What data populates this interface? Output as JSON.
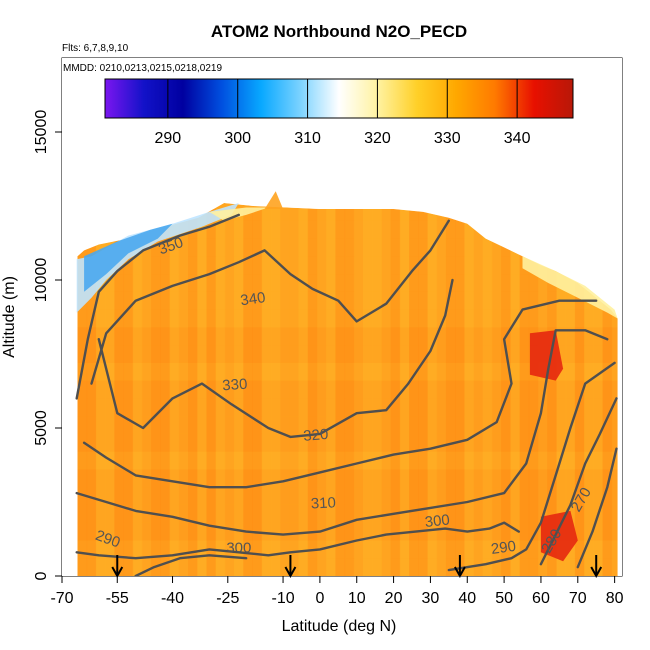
{
  "chart_data": {
    "type": "heatmap",
    "title": "ATOM2 Northbound N2O_PECD",
    "subtitle_flights": "Flts: 6,7,8,9,10",
    "subtitle_dates": "MMDD: 0210,0213,0215,0218,0219",
    "xlabel": "Latitude (deg N)",
    "ylabel": "Altitude (m)",
    "xlim": [
      -70,
      82
    ],
    "ylim": [
      0,
      17500
    ],
    "x_ticks": [
      -70,
      -55,
      -40,
      -25,
      -10,
      0,
      10,
      20,
      30,
      40,
      50,
      60,
      70,
      80
    ],
    "x_tick_labels": [
      "-70",
      "-55",
      "-40",
      "-25",
      "-10",
      "0",
      "10",
      "20",
      "30",
      "40",
      "50",
      "60",
      "70",
      "80"
    ],
    "y_ticks": [
      0,
      5000,
      10000,
      15000
    ],
    "y_tick_labels": [
      "0",
      "5000",
      "10000",
      "15000"
    ],
    "colorbar": {
      "range": [
        281,
        348
      ],
      "ticks": [
        290,
        300,
        310,
        320,
        330,
        340
      ],
      "tick_labels": [
        "290",
        "300",
        "310",
        "320",
        "330",
        "340"
      ],
      "stops": [
        "#7b16f0",
        "#1212c8",
        "#0000a0",
        "#0050e0",
        "#08a8ff",
        "#7ad2ff",
        "#ffffff",
        "#fff2a0",
        "#ffd028",
        "#ffa800",
        "#ff7a00",
        "#e81000",
        "#b81808"
      ]
    },
    "data_colors": {
      "background": "#ffa31f",
      "light": "#ffb326",
      "dark": "#ff8c14",
      "red": "#e62810",
      "blue": "#4aa8f0",
      "pale_blue": "#bfe4ff",
      "yellow": "#fff1a0"
    },
    "flight_markers_lat": [
      -55,
      -8,
      38,
      75
    ],
    "contour_labels": [
      "350",
      "340",
      "330",
      "320",
      "310",
      "300",
      "290",
      "300",
      "290",
      "280",
      "270"
    ],
    "grid": false
  }
}
